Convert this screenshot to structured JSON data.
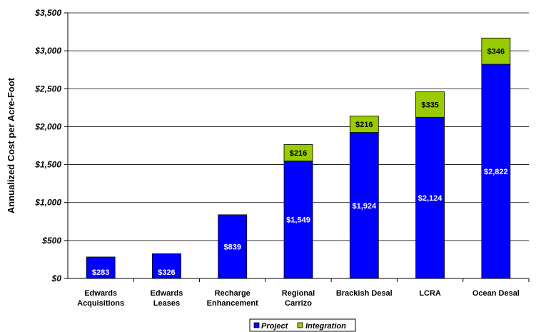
{
  "chart_data": {
    "type": "bar",
    "stacked": true,
    "title": "",
    "xlabel": "",
    "ylabel": "Annualized Cost per Acre-Foot",
    "ylim": [
      0,
      3500
    ],
    "yticks": [
      0,
      500,
      1000,
      1500,
      2000,
      2500,
      3000,
      3500
    ],
    "ytick_labels": [
      "$0",
      "$500",
      "$1,000",
      "$1,500",
      "$2,000",
      "$2,500",
      "$3,000",
      "$3,500"
    ],
    "grid": "horizontal",
    "legend_position": "bottom",
    "categories": [
      [
        "Edwards",
        "Acquisitions"
      ],
      [
        "Edwards",
        "Leases"
      ],
      [
        "Recharge",
        "Enhancement"
      ],
      [
        "Regional",
        "Carrizo"
      ],
      [
        "Brackish Desal"
      ],
      [
        "LCRA"
      ],
      [
        "Ocean Desal"
      ]
    ],
    "series": [
      {
        "name": "Project",
        "color": "#0000ff",
        "values": [
          283,
          326,
          839,
          1549,
          1924,
          2124,
          2822
        ],
        "labels": [
          "$283",
          "$326",
          "$839",
          "$1,549",
          "$1,924",
          "$2,124",
          "$2,822"
        ]
      },
      {
        "name": "Integration",
        "color": "#99cc00",
        "values": [
          0,
          0,
          0,
          216,
          216,
          335,
          346
        ],
        "labels": [
          "",
          "",
          "",
          "$216",
          "$216",
          "$335",
          "$346"
        ]
      }
    ]
  }
}
